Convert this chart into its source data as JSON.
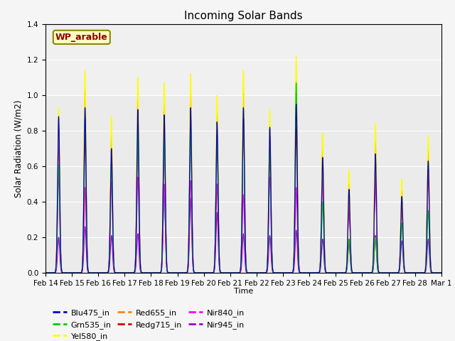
{
  "title": "Incoming Solar Bands",
  "ylabel": "Solar Radiation (W/m2)",
  "xlabel": "Time",
  "annotation": "WP_arable",
  "ylim": [
    0.0,
    1.4
  ],
  "figsize": [
    6.4,
    4.8
  ],
  "dpi": 100,
  "plot_bg": "#ebebeb",
  "fig_bg": "#f5f5f5",
  "series": [
    {
      "name": "Blu475_in",
      "color": "#0000cc"
    },
    {
      "name": "Grn535_in",
      "color": "#00cc00"
    },
    {
      "name": "Yel580_in",
      "color": "#ffff00"
    },
    {
      "name": "Red655_in",
      "color": "#ff8800"
    },
    {
      "name": "Redg715_in",
      "color": "#cc0000"
    },
    {
      "name": "Nir840_in",
      "color": "#ff00ff"
    },
    {
      "name": "Nir945_in",
      "color": "#9900cc"
    }
  ],
  "xtick_labels": [
    "Feb 14",
    "Feb 15",
    "Feb 16",
    "Feb 17",
    "Feb 18",
    "Feb 19",
    "Feb 20",
    "Feb 21",
    "Feb 22",
    "Feb 23",
    "Feb 24",
    "Feb 25",
    "Feb 26",
    "Feb 27",
    "Feb 28",
    "Mar 1"
  ],
  "n_days": 15,
  "pts_per_day": 200,
  "bell_sigma": 0.04,
  "day_peaks": {
    "Yel580_in": [
      0.93,
      1.14,
      0.88,
      1.1,
      1.07,
      1.12,
      1.0,
      1.14,
      0.92,
      1.22,
      0.79,
      0.58,
      0.84,
      0.53,
      0.77
    ],
    "Red655_in": [
      0.82,
      1.03,
      0.77,
      0.98,
      0.95,
      1.0,
      0.9,
      1.02,
      0.82,
      1.08,
      0.7,
      0.5,
      0.74,
      0.46,
      0.69
    ],
    "Redg715_in": [
      0.76,
      0.78,
      0.71,
      0.85,
      0.83,
      0.88,
      0.79,
      0.88,
      0.72,
      0.82,
      0.62,
      0.44,
      0.65,
      0.4,
      0.6
    ],
    "Nir840_in": [
      0.55,
      0.48,
      0.51,
      0.54,
      0.5,
      0.52,
      0.5,
      0.44,
      0.54,
      0.48,
      0.56,
      0.4,
      0.54,
      0.43,
      0.56
    ],
    "Grn535_in": [
      0.61,
      0.87,
      0.63,
      0.83,
      0.8,
      0.86,
      0.78,
      0.87,
      0.7,
      1.07,
      0.4,
      0.19,
      0.2,
      0.28,
      0.35
    ],
    "Blu475_in": [
      0.88,
      0.93,
      0.7,
      0.92,
      0.89,
      0.93,
      0.85,
      0.93,
      0.82,
      0.95,
      0.65,
      0.47,
      0.67,
      0.43,
      0.63
    ],
    "Nir945_in": [
      0.2,
      0.26,
      0.21,
      0.22,
      0.46,
      0.42,
      0.34,
      0.22,
      0.21,
      0.24,
      0.19,
      0.17,
      0.21,
      0.18,
      0.19
    ]
  }
}
